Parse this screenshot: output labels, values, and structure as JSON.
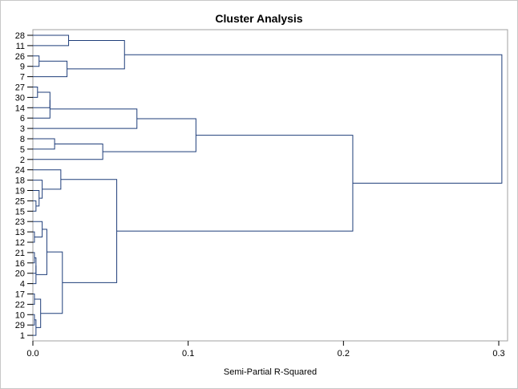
{
  "chart_data": {
    "type": "dendrogram",
    "title": "Cluster Analysis",
    "xlabel": "Semi-Partial R-Squared",
    "ylabel": "",
    "xlim": [
      0,
      0.3
    ],
    "x_ticks": [
      "0.0",
      "0.1",
      "0.2",
      "0.3"
    ],
    "x_tick_values": [
      0,
      0.1,
      0.2,
      0.3
    ],
    "leaves": [
      "28",
      "11",
      "26",
      "9",
      "7",
      "27",
      "30",
      "14",
      "6",
      "3",
      "8",
      "5",
      "2",
      "24",
      "18",
      "19",
      "25",
      "15",
      "23",
      "13",
      "12",
      "21",
      "16",
      "20",
      "4",
      "17",
      "22",
      "10",
      "29",
      "1"
    ],
    "merges": [
      {
        "children": [
          "28",
          "11"
        ],
        "height": 0.023
      },
      {
        "children": [
          "26",
          "9"
        ],
        "height": 0.004
      },
      {
        "children": [
          "26,9",
          "7"
        ],
        "height": 0.022
      },
      {
        "children": [
          "28,11",
          "26,9,7"
        ],
        "height": 0.059
      },
      {
        "children": [
          "27",
          "30"
        ],
        "height": 0.003
      },
      {
        "children": [
          "27,30",
          "14"
        ],
        "height": 0.011
      },
      {
        "children": [
          "27,30,14",
          "6"
        ],
        "height": 0.011
      },
      {
        "children": [
          "27,30,14,6",
          "3"
        ],
        "height": 0.067
      },
      {
        "children": [
          "8",
          "5"
        ],
        "height": 0.014
      },
      {
        "children": [
          "8,5",
          "2"
        ],
        "height": 0.045
      },
      {
        "children": [
          "A",
          "8,5,2"
        ],
        "height": 0.105
      },
      {
        "children": [
          "25",
          "15"
        ],
        "height": 0.002
      },
      {
        "children": [
          "19",
          "25,15"
        ],
        "height": 0.004
      },
      {
        "children": [
          "18",
          "19,25,15"
        ],
        "height": 0.006
      },
      {
        "children": [
          "24",
          "18,19,25,15"
        ],
        "height": 0.018
      },
      {
        "children": [
          "13",
          "12"
        ],
        "height": 0.001
      },
      {
        "children": [
          "23",
          "13,12"
        ],
        "height": 0.006
      },
      {
        "children": [
          "21",
          "16"
        ],
        "height": 0.001
      },
      {
        "children": [
          "21,16",
          "20"
        ],
        "height": 0.002
      },
      {
        "children": [
          "21,16,20",
          "4"
        ],
        "height": 0.002
      },
      {
        "children": [
          "23,13,12",
          "21,16,20,4"
        ],
        "height": 0.009
      },
      {
        "children": [
          "17",
          "22"
        ],
        "height": 0.001
      },
      {
        "children": [
          "10",
          "29"
        ],
        "height": 0.001
      },
      {
        "children": [
          "10,29",
          "1"
        ],
        "height": 0.002
      },
      {
        "children": [
          "17,22",
          "10,29,1"
        ],
        "height": 0.005
      },
      {
        "children": [
          "B1",
          "B2"
        ],
        "height": 0.019
      },
      {
        "children": [
          "24..15",
          "23..1"
        ],
        "height": 0.054
      },
      {
        "children": [
          "28..3",
          "24..1"
        ],
        "height": 0.206
      },
      {
        "children": [
          "28..7",
          "rest"
        ],
        "height": 0.302
      }
    ],
    "grid": false,
    "legend": "none"
  },
  "colors": {
    "link": "#1f3e7a",
    "axis": "#000000",
    "frame": "#c8c8c8",
    "wall": "#a0a0a0"
  }
}
